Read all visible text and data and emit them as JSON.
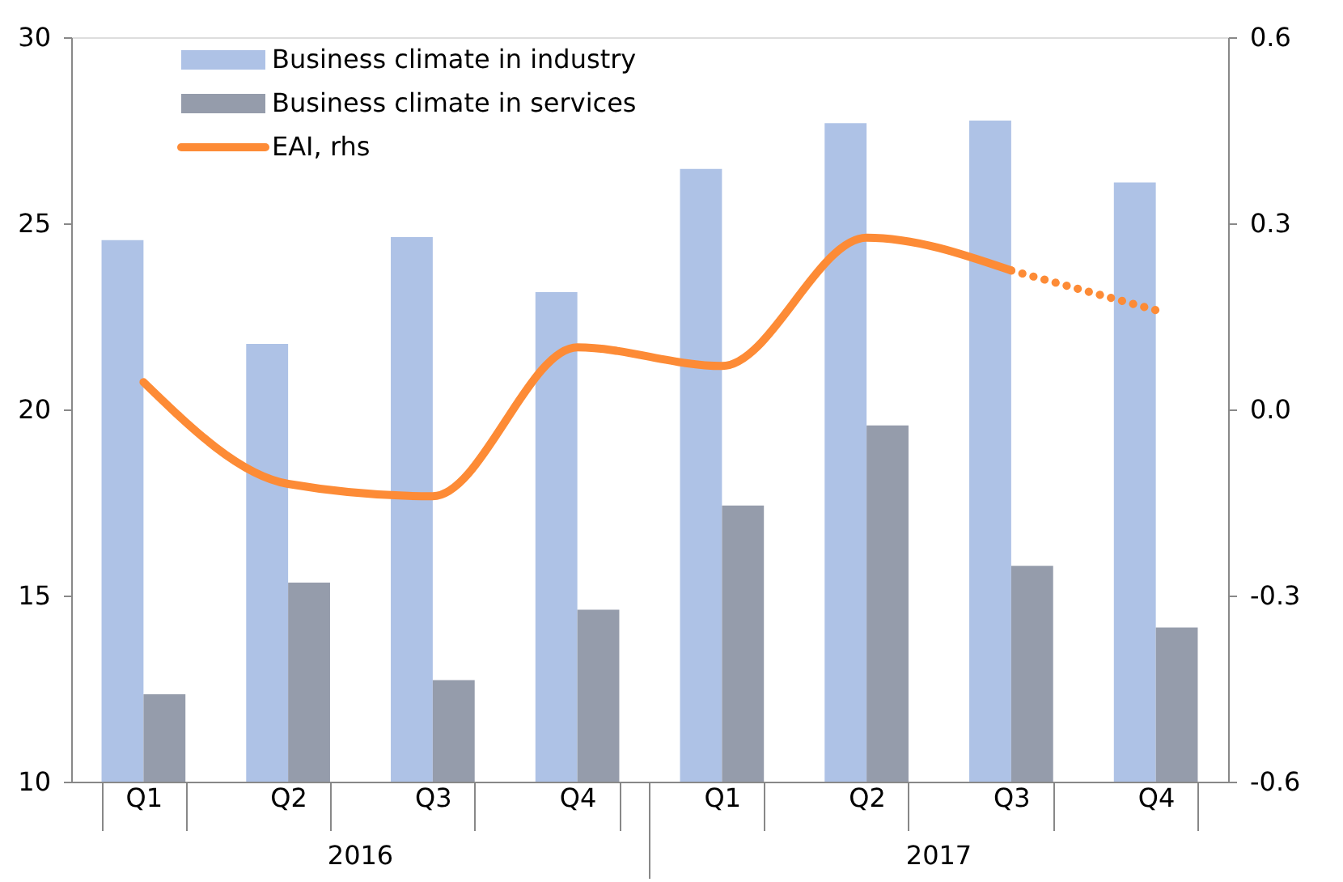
{
  "chart_data": {
    "type": "bar",
    "categories": [
      "Q1",
      "Q2",
      "Q3",
      "Q4",
      "Q1",
      "Q2",
      "Q3",
      "Q4"
    ],
    "series": [
      {
        "name": "Business climate in industry",
        "color": "#aec2e6",
        "values": [
          24.55,
          21.76,
          24.63,
          23.15,
          26.46,
          27.69,
          27.76,
          26.1
        ]
      },
      {
        "name": "Business climate in services",
        "color": "#959cab",
        "values": [
          12.35,
          15.35,
          12.73,
          14.62,
          17.42,
          19.57,
          15.8,
          14.14
        ]
      },
      {
        "name": "EAI, rhs",
        "type": "line",
        "axis": "y2",
        "color": "#fd8b36",
        "line_style": "solid",
        "values": [
          0.044,
          -0.12,
          -0.14,
          0.1,
          0.07,
          0.277,
          0.224,
          null
        ]
      },
      {
        "type": "line",
        "axis": "y2",
        "color": "#fd8b36",
        "line_style": "dotted",
        "values": [
          null,
          null,
          null,
          null,
          null,
          null,
          0.224,
          0.16
        ]
      }
    ],
    "ylim": [
      10,
      30
    ],
    "yticks": [
      10,
      15,
      20,
      25,
      30
    ],
    "y2lim": [
      -0.6,
      0.6
    ],
    "y2ticks": [
      {
        "value": -0.6,
        "label": "-0.6"
      },
      {
        "value": -0.3,
        "label": "-0.3"
      },
      {
        "value": 0,
        "label": "0.0"
      },
      {
        "value": 0.3,
        "label": "0.3"
      },
      {
        "value": 0.6,
        "label": "0.6"
      }
    ],
    "annotations": [
      "2016",
      "2017"
    ],
    "grid": false,
    "legend": "top left"
  }
}
